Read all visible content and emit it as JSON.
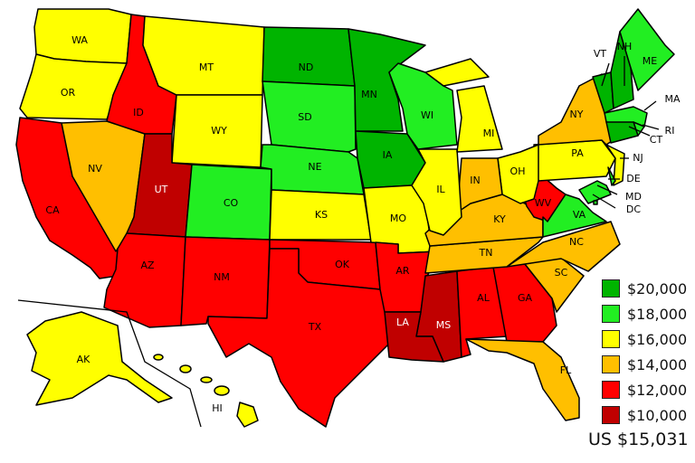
{
  "legend": [
    {
      "label": "$20,000",
      "color": "#00b400"
    },
    {
      "label": "$18,000",
      "color": "#22ee22"
    },
    {
      "label": "$16,000",
      "color": "#ffff00"
    },
    {
      "label": "$14,000",
      "color": "#ffbf00"
    },
    {
      "label": "$12,000",
      "color": "#ff0000"
    },
    {
      "label": "$10,000",
      "color": "#c00000"
    }
  ],
  "us_total": "US $15,031",
  "states": {
    "WA": "$16,000",
    "OR": "$16,000",
    "CA": "$12,000",
    "NV": "$14,000",
    "ID": "$12,000",
    "MT": "$16,000",
    "WY": "$16,000",
    "UT": "$10,000",
    "CO": "$18,000",
    "AZ": "$12,000",
    "NM": "$12,000",
    "ND": "$20,000",
    "SD": "$18,000",
    "NE": "$18,000",
    "KS": "$16,000",
    "OK": "$12,000",
    "TX": "$12,000",
    "MN": "$20,000",
    "IA": "$20,000",
    "MO": "$16,000",
    "AR": "$12,000",
    "LA": "$10,000",
    "WI": "$18,000",
    "IL": "$16,000",
    "MI": "$16,000",
    "IN": "$14,000",
    "OH": "$16,000",
    "KY": "$14,000",
    "TN": "$14,000",
    "MS": "$10,000",
    "AL": "$12,000",
    "GA": "$12,000",
    "FL": "$14,000",
    "SC": "$14,000",
    "NC": "$14,000",
    "VA": "$18,000",
    "WV": "$12,000",
    "PA": "$16,000",
    "NY": "$14,000",
    "NJ": "$16,000",
    "DE": "$18,000",
    "MD": "$18,000",
    "DC": "$18,000",
    "VT": "$20,000",
    "NH": "$20,000",
    "ME": "$18,000",
    "MA": "$18,000",
    "RI": "$18,000",
    "CT": "$20,000",
    "AK": "$16,000",
    "HI": "$16,000"
  }
}
